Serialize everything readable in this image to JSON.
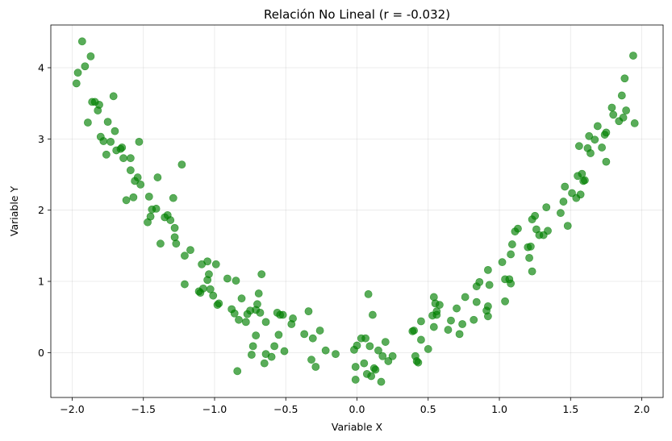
{
  "chart_data": {
    "type": "scatter",
    "title": "Relación No Lineal (r = -0.032)",
    "xlabel": "Variable X",
    "ylabel": "Variable Y",
    "xlim": [
      -2.15,
      2.15
    ],
    "ylim": [
      -0.63,
      4.6
    ],
    "xticks": [
      -2.0,
      -1.5,
      -1.0,
      -0.5,
      0.0,
      0.5,
      1.0,
      1.5,
      2.0
    ],
    "xtick_labels": [
      "−2.0",
      "−1.5",
      "−1.0",
      "−0.5",
      "0.0",
      "0.5",
      "1.0",
      "1.5",
      "2.0"
    ],
    "yticks": [
      0,
      1,
      2,
      3,
      4
    ],
    "ytick_labels": [
      "0",
      "1",
      "2",
      "3",
      "4"
    ],
    "grid": true,
    "point_color": "#008000",
    "point_alpha": 0.65,
    "series": [
      {
        "points": [
          [
            -1.97,
            3.78
          ],
          [
            -1.96,
            3.93
          ],
          [
            -1.93,
            4.37
          ],
          [
            -1.91,
            4.02
          ],
          [
            -1.89,
            3.23
          ],
          [
            -1.87,
            4.16
          ],
          [
            -1.86,
            3.52
          ],
          [
            -1.84,
            3.52
          ],
          [
            -1.82,
            3.4
          ],
          [
            -1.81,
            3.48
          ],
          [
            -1.8,
            3.03
          ],
          [
            -1.78,
            2.97
          ],
          [
            -1.76,
            2.78
          ],
          [
            -1.75,
            3.24
          ],
          [
            -1.73,
            2.96
          ],
          [
            -1.71,
            3.6
          ],
          [
            -1.7,
            3.11
          ],
          [
            -1.69,
            2.84
          ],
          [
            -1.66,
            2.86
          ],
          [
            -1.65,
            2.88
          ],
          [
            -1.64,
            2.73
          ],
          [
            -1.62,
            2.14
          ],
          [
            -1.59,
            2.56
          ],
          [
            -1.59,
            2.73
          ],
          [
            -1.57,
            2.18
          ],
          [
            -1.56,
            2.41
          ],
          [
            -1.54,
            2.46
          ],
          [
            -1.53,
            2.96
          ],
          [
            -1.52,
            2.36
          ],
          [
            -1.47,
            1.83
          ],
          [
            -1.46,
            2.19
          ],
          [
            -1.45,
            1.91
          ],
          [
            -1.44,
            2.01
          ],
          [
            -1.41,
            2.02
          ],
          [
            -1.4,
            2.46
          ],
          [
            -1.38,
            1.53
          ],
          [
            -1.35,
            1.9
          ],
          [
            -1.33,
            1.93
          ],
          [
            -1.31,
            1.86
          ],
          [
            -1.29,
            2.17
          ],
          [
            -1.28,
            1.75
          ],
          [
            -1.28,
            1.62
          ],
          [
            -1.27,
            1.53
          ],
          [
            -1.23,
            2.64
          ],
          [
            -1.21,
            1.36
          ],
          [
            -1.21,
            0.96
          ],
          [
            -1.17,
            1.44
          ],
          [
            -1.11,
            0.86
          ],
          [
            -1.1,
            0.84
          ],
          [
            -1.09,
            1.24
          ],
          [
            -1.08,
            0.9
          ],
          [
            -1.05,
            1.28
          ],
          [
            -1.05,
            1.02
          ],
          [
            -1.04,
            1.1
          ],
          [
            -1.03,
            0.89
          ],
          [
            -1.01,
            0.8
          ],
          [
            -0.99,
            1.24
          ],
          [
            -0.98,
            0.67
          ],
          [
            -0.97,
            0.69
          ],
          [
            -0.91,
            1.04
          ],
          [
            -0.88,
            0.61
          ],
          [
            -0.86,
            0.55
          ],
          [
            -0.85,
            1.01
          ],
          [
            -0.84,
            -0.26
          ],
          [
            -0.83,
            0.46
          ],
          [
            -0.81,
            0.76
          ],
          [
            -0.78,
            0.43
          ],
          [
            -0.77,
            0.54
          ],
          [
            -0.75,
            0.59
          ],
          [
            -0.74,
            -0.03
          ],
          [
            -0.73,
            0.09
          ],
          [
            -0.71,
            0.24
          ],
          [
            -0.71,
            0.6
          ],
          [
            -0.7,
            0.68
          ],
          [
            -0.69,
            0.83
          ],
          [
            -0.68,
            0.56
          ],
          [
            -0.67,
            1.1
          ],
          [
            -0.65,
            -0.15
          ],
          [
            -0.64,
            0.43
          ],
          [
            -0.64,
            -0.02
          ],
          [
            -0.6,
            -0.06
          ],
          [
            -0.58,
            0.09
          ],
          [
            -0.56,
            0.56
          ],
          [
            -0.55,
            0.25
          ],
          [
            -0.54,
            0.53
          ],
          [
            -0.52,
            0.53
          ],
          [
            -0.51,
            0.02
          ],
          [
            -0.46,
            0.4
          ],
          [
            -0.45,
            0.48
          ],
          [
            -0.37,
            0.26
          ],
          [
            -0.34,
            0.58
          ],
          [
            -0.32,
            -0.1
          ],
          [
            -0.31,
            0.2
          ],
          [
            -0.29,
            -0.2
          ],
          [
            -0.26,
            0.31
          ],
          [
            -0.22,
            0.03
          ],
          [
            -0.15,
            -0.02
          ],
          [
            -0.02,
            0.04
          ],
          [
            -0.01,
            -0.2
          ],
          [
            -0.01,
            -0.38
          ],
          [
            0.0,
            0.1
          ],
          [
            0.03,
            0.2
          ],
          [
            0.05,
            -0.15
          ],
          [
            0.06,
            0.2
          ],
          [
            0.07,
            -0.3
          ],
          [
            0.08,
            0.82
          ],
          [
            0.09,
            0.09
          ],
          [
            0.1,
            -0.33
          ],
          [
            0.11,
            0.53
          ],
          [
            0.12,
            -0.22
          ],
          [
            0.13,
            -0.24
          ],
          [
            0.15,
            0.03
          ],
          [
            0.17,
            -0.41
          ],
          [
            0.18,
            -0.05
          ],
          [
            0.2,
            0.15
          ],
          [
            0.22,
            -0.12
          ],
          [
            0.25,
            -0.05
          ],
          [
            0.39,
            0.3
          ],
          [
            0.4,
            0.31
          ],
          [
            0.41,
            -0.05
          ],
          [
            0.42,
            -0.12
          ],
          [
            0.43,
            -0.14
          ],
          [
            0.45,
            0.44
          ],
          [
            0.45,
            0.18
          ],
          [
            0.5,
            0.05
          ],
          [
            0.53,
            0.52
          ],
          [
            0.54,
            0.78
          ],
          [
            0.54,
            0.36
          ],
          [
            0.55,
            0.69
          ],
          [
            0.56,
            0.58
          ],
          [
            0.56,
            0.53
          ],
          [
            0.58,
            0.67
          ],
          [
            0.64,
            0.32
          ],
          [
            0.66,
            0.45
          ],
          [
            0.7,
            0.62
          ],
          [
            0.72,
            0.26
          ],
          [
            0.74,
            0.4
          ],
          [
            0.76,
            0.78
          ],
          [
            0.82,
            0.46
          ],
          [
            0.84,
            0.71
          ],
          [
            0.84,
            0.93
          ],
          [
            0.86,
            0.99
          ],
          [
            0.91,
            0.59
          ],
          [
            0.92,
            0.65
          ],
          [
            0.92,
            0.51
          ],
          [
            0.92,
            1.16
          ],
          [
            0.93,
            0.95
          ],
          [
            1.02,
            1.27
          ],
          [
            1.04,
            0.72
          ],
          [
            1.04,
            1.03
          ],
          [
            1.07,
            1.03
          ],
          [
            1.08,
            0.97
          ],
          [
            1.08,
            1.38
          ],
          [
            1.09,
            1.52
          ],
          [
            1.11,
            1.7
          ],
          [
            1.13,
            1.74
          ],
          [
            1.2,
            1.48
          ],
          [
            1.21,
            1.33
          ],
          [
            1.22,
            1.49
          ],
          [
            1.23,
            1.87
          ],
          [
            1.23,
            1.14
          ],
          [
            1.25,
            1.92
          ],
          [
            1.26,
            1.73
          ],
          [
            1.28,
            1.65
          ],
          [
            1.31,
            1.65
          ],
          [
            1.33,
            2.04
          ],
          [
            1.34,
            1.71
          ],
          [
            1.43,
            1.96
          ],
          [
            1.45,
            2.12
          ],
          [
            1.46,
            2.33
          ],
          [
            1.48,
            1.78
          ],
          [
            1.51,
            2.24
          ],
          [
            1.54,
            2.17
          ],
          [
            1.55,
            2.48
          ],
          [
            1.56,
            2.9
          ],
          [
            1.57,
            2.22
          ],
          [
            1.58,
            2.51
          ],
          [
            1.59,
            2.41
          ],
          [
            1.6,
            2.42
          ],
          [
            1.62,
            2.87
          ],
          [
            1.63,
            3.04
          ],
          [
            1.64,
            2.8
          ],
          [
            1.67,
            2.99
          ],
          [
            1.69,
            3.18
          ],
          [
            1.72,
            2.88
          ],
          [
            1.74,
            3.06
          ],
          [
            1.75,
            3.09
          ],
          [
            1.75,
            2.68
          ],
          [
            1.79,
            3.44
          ],
          [
            1.8,
            3.34
          ],
          [
            1.84,
            3.25
          ],
          [
            1.86,
            3.61
          ],
          [
            1.87,
            3.3
          ],
          [
            1.88,
            3.85
          ],
          [
            1.89,
            3.4
          ],
          [
            1.94,
            4.17
          ],
          [
            1.95,
            3.22
          ]
        ]
      }
    ]
  }
}
